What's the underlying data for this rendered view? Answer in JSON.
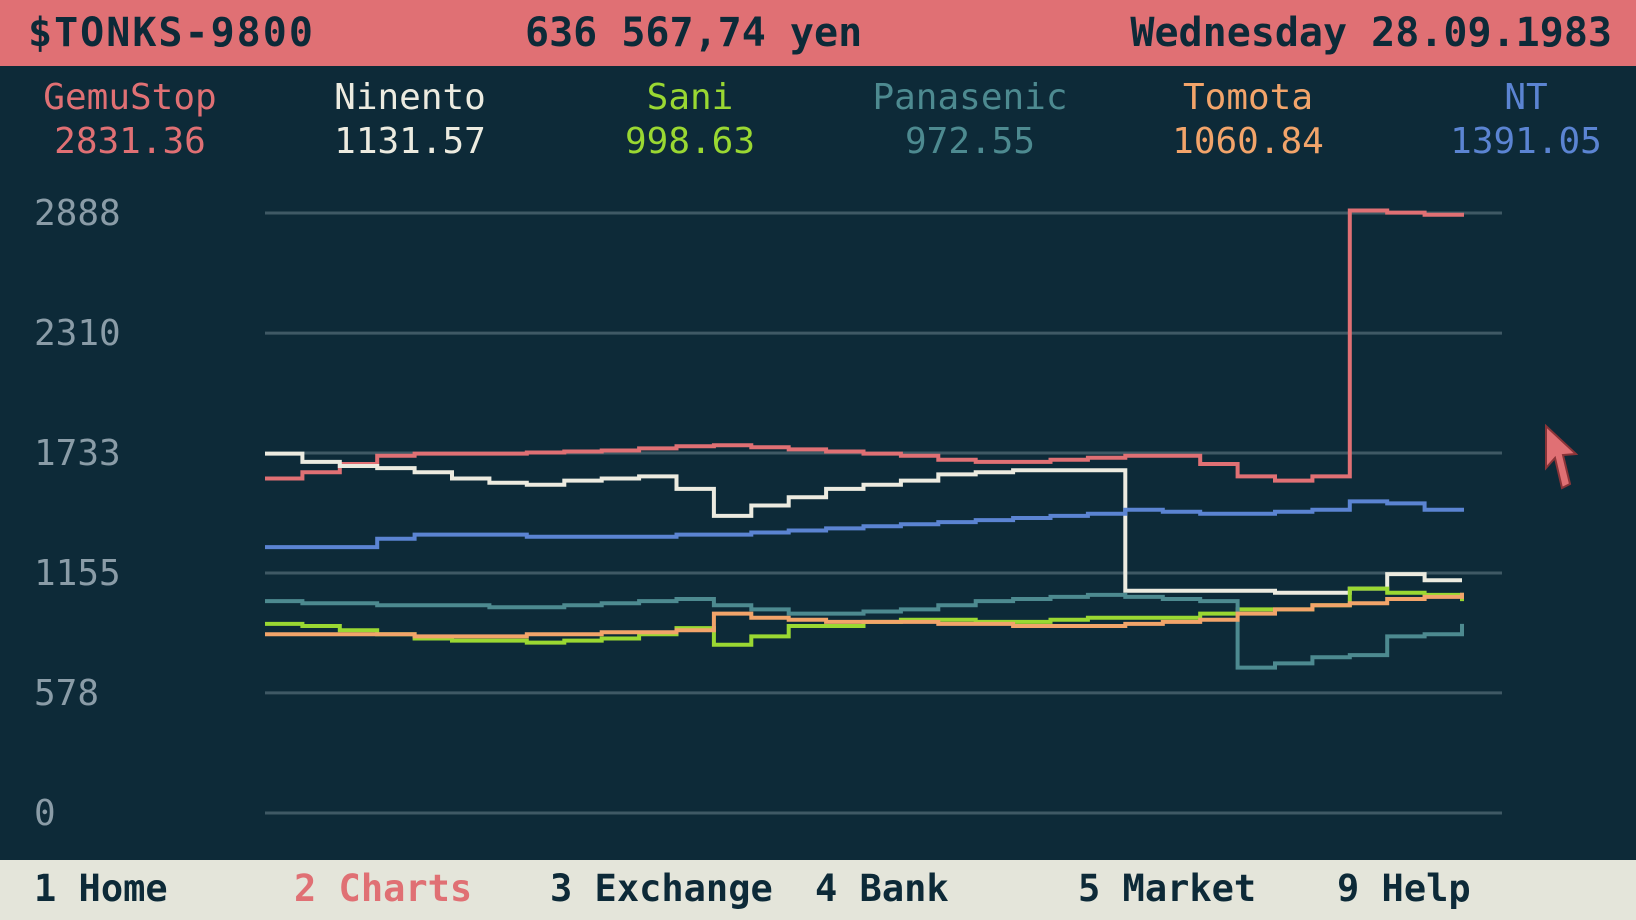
{
  "header": {
    "app_title": "$TONKS-9800",
    "balance": "636 567,74 yen",
    "date": "Wednesday 28.09.1983"
  },
  "tickers": [
    {
      "name": "GemuStop",
      "price": "2831.36",
      "color": "#e07074"
    },
    {
      "name": "Ninento",
      "price": "1131.57",
      "color": "#ecebe0"
    },
    {
      "name": "Sani",
      "price": "998.63",
      "color": "#9ad832"
    },
    {
      "name": "Panasenic",
      "price": "972.55",
      "color": "#4d8a90"
    },
    {
      "name": "Tomota",
      "price": "1060.84",
      "color": "#f2a46a"
    },
    {
      "name": "NT",
      "price": "1391.05",
      "color": "#5b84d2"
    }
  ],
  "nav": [
    {
      "label": "1 Home",
      "active": false
    },
    {
      "label": "2 Charts",
      "active": true
    },
    {
      "label": "3 Exchange",
      "active": false
    },
    {
      "label": "4 Bank",
      "active": false
    },
    {
      "label": "5 Market",
      "active": false
    },
    {
      "label": "9 Help",
      "active": false
    }
  ],
  "chart_data": {
    "type": "line",
    "y_ticks": [
      "2888",
      "2310",
      "1733",
      "1155",
      "578",
      "0"
    ],
    "ylim": [
      0,
      2888
    ],
    "grid": true,
    "series": [
      {
        "name": "GemuStop",
        "color": "#e07074",
        "values": [
          1610,
          1640,
          1680,
          1720,
          1730,
          1730,
          1730,
          1735,
          1740,
          1745,
          1755,
          1765,
          1770,
          1760,
          1750,
          1740,
          1730,
          1720,
          1700,
          1690,
          1690,
          1700,
          1710,
          1720,
          1720,
          1680,
          1620,
          1600,
          1620,
          2900,
          2890,
          2880,
          2870
        ]
      },
      {
        "name": "Ninento",
        "color": "#ecebe0",
        "values": [
          1730,
          1690,
          1670,
          1660,
          1640,
          1610,
          1590,
          1580,
          1600,
          1610,
          1620,
          1560,
          1430,
          1480,
          1520,
          1560,
          1580,
          1600,
          1630,
          1640,
          1650,
          1650,
          1650,
          1070,
          1070,
          1070,
          1070,
          1060,
          1060,
          1080,
          1150,
          1120,
          1120
        ]
      },
      {
        "name": "Sani",
        "color": "#9ad832",
        "values": [
          910,
          900,
          880,
          860,
          840,
          830,
          830,
          820,
          830,
          840,
          860,
          890,
          810,
          850,
          900,
          900,
          920,
          930,
          930,
          920,
          920,
          930,
          940,
          940,
          940,
          960,
          980,
          980,
          1000,
          1080,
          1060,
          1050,
          1020
        ]
      },
      {
        "name": "Panasenic",
        "color": "#4d8a90",
        "values": [
          1020,
          1010,
          1010,
          1000,
          1000,
          1000,
          990,
          990,
          1000,
          1010,
          1020,
          1030,
          1000,
          980,
          960,
          960,
          970,
          980,
          1000,
          1020,
          1030,
          1040,
          1050,
          1040,
          1030,
          1020,
          700,
          720,
          750,
          760,
          850,
          860,
          910
        ]
      },
      {
        "name": "Tomota",
        "color": "#f2a46a",
        "values": [
          860,
          860,
          860,
          860,
          850,
          850,
          850,
          860,
          860,
          870,
          870,
          880,
          960,
          940,
          930,
          920,
          920,
          920,
          910,
          910,
          900,
          900,
          900,
          910,
          920,
          930,
          960,
          980,
          1000,
          1010,
          1030,
          1040,
          1060
        ]
      },
      {
        "name": "NT",
        "color": "#5b84d2",
        "values": [
          1280,
          1280,
          1280,
          1320,
          1340,
          1340,
          1340,
          1330,
          1330,
          1330,
          1330,
          1340,
          1340,
          1350,
          1360,
          1370,
          1380,
          1390,
          1400,
          1410,
          1420,
          1430,
          1440,
          1460,
          1450,
          1440,
          1440,
          1450,
          1460,
          1500,
          1490,
          1460,
          1450
        ]
      }
    ]
  }
}
